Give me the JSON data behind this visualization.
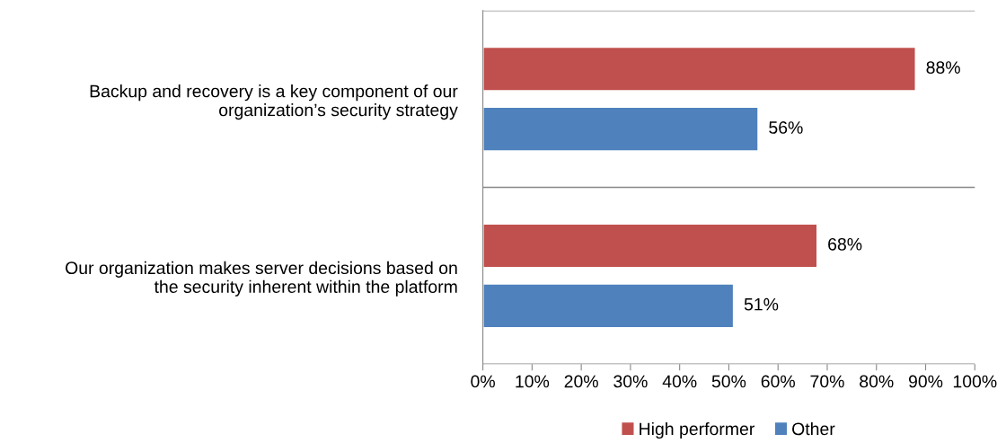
{
  "chart_data": {
    "type": "bar",
    "orientation": "horizontal",
    "categories": [
      "Backup and recovery is a key component of our organization’s security strategy",
      "Our organization makes server decisions based on the security inherent within the platform"
    ],
    "series": [
      {
        "name": "High performer",
        "color": "#c0504d",
        "values": [
          88,
          68
        ]
      },
      {
        "name": "Other",
        "color": "#4f81bd",
        "values": [
          56,
          51
        ]
      }
    ],
    "xlim": [
      0,
      100
    ],
    "xticks": [
      {
        "value": 0,
        "label": "0%"
      },
      {
        "value": 10,
        "label": "10%"
      },
      {
        "value": 20,
        "label": "20%"
      },
      {
        "value": 30,
        "label": "30%"
      },
      {
        "value": 40,
        "label": "40%"
      },
      {
        "value": 50,
        "label": "50%"
      },
      {
        "value": 60,
        "label": "60%"
      },
      {
        "value": 70,
        "label": "70%"
      },
      {
        "value": 80,
        "label": "80%"
      },
      {
        "value": 90,
        "label": "90%"
      },
      {
        "value": 100,
        "label": "100%"
      }
    ],
    "value_labels": [
      [
        "88%",
        "68%"
      ],
      [
        "56%",
        "51%"
      ]
    ],
    "grid": "y",
    "legend": "bottom"
  }
}
